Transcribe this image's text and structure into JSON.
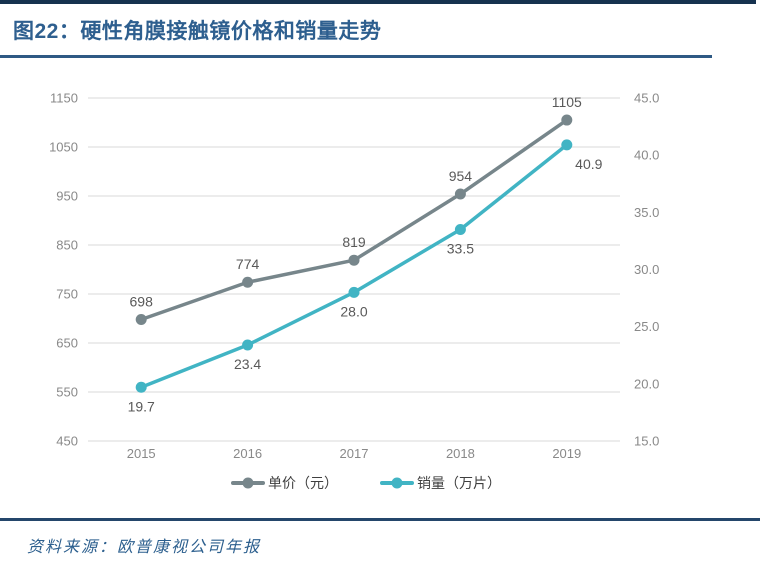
{
  "header": {
    "figure_label": "图22",
    "title": "图22：硬性角膜接触镜价格和销量走势"
  },
  "source": {
    "label": "资料来源：欧普康视公司年报"
  },
  "colors": {
    "accent_navy": "#16324F",
    "title_blue": "#2E5F8F",
    "rule_blue": "#2E5984",
    "grid_gray": "#D9D9D9",
    "tick_gray": "#898989",
    "data_label_gray": "#595959"
  },
  "chart_data": {
    "type": "line",
    "title": "硬性角膜接触镜价格和销量走势",
    "categories": [
      "2015",
      "2016",
      "2017",
      "2018",
      "2019"
    ],
    "series": [
      {
        "name": "单价（元）",
        "axis": "left",
        "color": "#77868B",
        "values": [
          698,
          774,
          819,
          954,
          1105
        ],
        "point_labels": [
          "698",
          "774",
          "819",
          "954",
          "1105"
        ],
        "label_side": "above",
        "label_dx": [
          0,
          0,
          0,
          0,
          0
        ]
      },
      {
        "name": "销量（万片）",
        "axis": "right",
        "color": "#41B4C4",
        "values": [
          19.7,
          23.4,
          28.0,
          33.5,
          40.9
        ],
        "point_labels": [
          "19.7",
          "23.4",
          "28.0",
          "33.5",
          "40.9"
        ],
        "label_side": "below",
        "label_dx": [
          0,
          0,
          0,
          0,
          22
        ]
      }
    ],
    "left_axis": {
      "min": 450,
      "max": 1150,
      "step": 100,
      "ticks": [
        "1150",
        "1050",
        "950",
        "850",
        "750",
        "650",
        "550",
        "450"
      ]
    },
    "right_axis": {
      "min": 15.0,
      "max": 45.0,
      "step": 5.0,
      "ticks": [
        "45.0",
        "40.0",
        "35.0",
        "30.0",
        "25.0",
        "20.0",
        "15.0"
      ]
    },
    "grid": true,
    "legend_position": "bottom"
  }
}
